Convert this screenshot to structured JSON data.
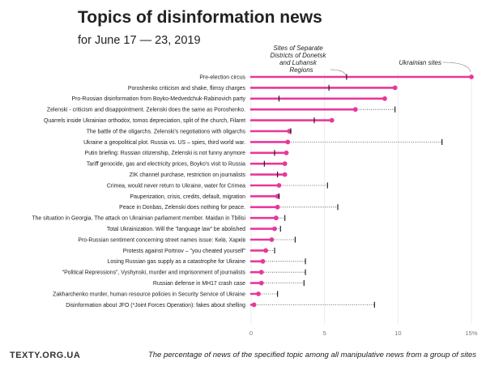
{
  "header": {
    "title": "Topics of disinformation news",
    "subtitle": "for June 17 — 23, 2019"
  },
  "footer": {
    "brand": "TEXTY.ORG.UA",
    "note": "The percentage of news of the specified topic among all manipulative news from a group of sites"
  },
  "colors": {
    "ukrainian_sites": "#e8389a",
    "separate_districts": "#111111",
    "dotted_line": "#444444"
  },
  "annotations": {
    "separate_districts_line1": "Sites of Separate",
    "separate_districts_line2": "Districts of Donetsk",
    "separate_districts_line3": "and Luhansk",
    "separate_districts_line4": "Regions",
    "ukrainian_sites": "Ukrainian sites"
  },
  "chart_data": {
    "type": "dot-bar",
    "xlim": [
      0,
      15
    ],
    "x_ticks": [
      "0",
      "5",
      "10",
      "15%"
    ],
    "series": [
      {
        "name": "Ukrainian sites"
      },
      {
        "name": "Sites of Separate Districts of Donetsk and Luhansk Regions"
      }
    ],
    "categories": [
      "Pre-election circus",
      "Poroshenko criticism and shake, flimsy charges",
      "Pro-Russian disinformation from Boyko-Medvedchuk-Rabinovich party",
      "Zelenski - criticism and disappointment. Zelenski does the same as Poroshenko.",
      "Quarrels inside Ukrainian orthodox, tomos depreciation, split of the church, Filaret",
      "The battle of the oligarchs. Zelenski's negotiations with oligarchs",
      "Ukraine a geopolitical plot. Russia vs. US – spies, third world war.",
      "Putin briefing: Russian citizenship, Zelenski is not funny anymore",
      "Tariff genocide, gas and electricity prices, Boyko's visit to Russia",
      "ZIK channel purchase, restriction on journalists",
      "Crimea, would never return to Ukraine, water for Crimea",
      "Pauperization, crisis, credits, default, migration",
      "Peace in Donbas, Zelenski does nothing for peace.",
      "The situation in Georgia. The attack on Ukrainian parliament member. Maidan in Tbilisi",
      "Total Ukrainization. Will the \"language law\" be abolished",
      "Pro-Russian sentiment concerning street names issue: Київ, Харків",
      "Protests against Portnov – \"you cheated yourself\"",
      "Losing Russian gas supply as a catastrophe for Ukraine",
      "\"Political Repressions\", Vyshynski, murder and imprisonment of journalists",
      "Russian defense in MH17 crash case",
      "Zakharchenko murder, human resource policies in Security Service of Ukraine",
      "Disinformation about JFO (*Joint Forces Operation): fakes about shelling"
    ],
    "ukrainian_sites": [
      15.0,
      9.8,
      9.1,
      7.1,
      5.5,
      2.6,
      2.5,
      2.4,
      2.3,
      2.3,
      1.9,
      1.8,
      1.8,
      1.7,
      1.6,
      1.4,
      1.0,
      0.8,
      0.7,
      0.7,
      0.5,
      0.2
    ],
    "separate_districts": [
      6.5,
      5.3,
      1.9,
      9.8,
      4.3,
      2.7,
      13.0,
      1.6,
      0.9,
      1.8,
      5.2,
      1.9,
      5.9,
      2.3,
      2.0,
      3.0,
      1.6,
      3.7,
      3.7,
      3.6,
      1.8,
      8.4
    ]
  }
}
